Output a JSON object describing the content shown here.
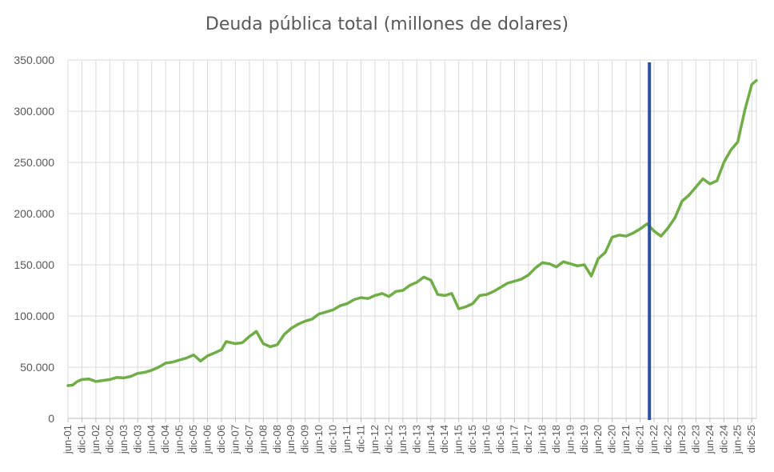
{
  "chart_data": {
    "type": "line",
    "title": "Deuda pública total (millones de dolares)",
    "xlabel": "",
    "ylabel": "",
    "ylim": [
      0,
      350000
    ],
    "y_ticks": [
      0,
      50000,
      100000,
      150000,
      200000,
      250000,
      300000,
      350000
    ],
    "y_tick_labels": [
      "0",
      "50.000",
      "100.000",
      "150.000",
      "200.000",
      "250.000",
      "300.000",
      "350.000"
    ],
    "x_tick_labels": [
      "jun-01",
      "dic-01",
      "jun-02",
      "dic-02",
      "jun-03",
      "dic-03",
      "jun-04",
      "dic-04",
      "jun-05",
      "dic-05",
      "jun-06",
      "dic-06",
      "jun-07",
      "dic-07",
      "jun-08",
      "dic-08",
      "jun-09",
      "dic-09",
      "jun-10",
      "dic-10",
      "jun-11",
      "dic-11",
      "jun-12",
      "dic-12",
      "jun-13",
      "dic-13",
      "jun-14",
      "dic-14",
      "jun-15",
      "dic-15",
      "jun-16",
      "dic-16",
      "jun-17",
      "dic-17",
      "jun-18",
      "dic-18",
      "jun-19",
      "dic-19",
      "jun-20",
      "dic-20",
      "jun-21",
      "dic-21",
      "jun-22",
      "dic-22",
      "jun-23",
      "dic-23",
      "jun-24",
      "dic-24",
      "jun-25",
      "dic-25"
    ],
    "grid": true,
    "series": [
      {
        "color": "#70ad47",
        "x": [
          "jun-01",
          "ago-01",
          "oct-01",
          "dic-01",
          "mar-02",
          "jun-02",
          "sep-02",
          "dic-02",
          "mar-03",
          "jun-03",
          "sep-03",
          "dic-03",
          "mar-04",
          "jun-04",
          "sep-04",
          "dic-04",
          "mar-05",
          "jun-05",
          "sep-05",
          "dic-05",
          "mar-06",
          "jun-06",
          "sep-06",
          "dic-06",
          "feb-07",
          "jun-07",
          "sep-07",
          "dic-07",
          "mar-08",
          "jun-08",
          "sep-08",
          "dic-08",
          "mar-09",
          "jun-09",
          "sep-09",
          "dic-09",
          "mar-10",
          "jun-10",
          "sep-10",
          "dic-10",
          "mar-11",
          "jun-11",
          "sep-11",
          "dic-11",
          "mar-12",
          "jun-12",
          "sep-12",
          "dic-12",
          "mar-13",
          "jun-13",
          "sep-13",
          "dic-13",
          "mar-14",
          "jun-14",
          "sep-14",
          "dic-14",
          "mar-15",
          "jun-15",
          "sep-15",
          "dic-15",
          "mar-16",
          "jun-16",
          "sep-16",
          "dic-16",
          "mar-17",
          "jun-17",
          "sep-17",
          "dic-17",
          "mar-18",
          "jun-18",
          "sep-18",
          "dic-18",
          "mar-19",
          "jun-19",
          "sep-19",
          "dic-19",
          "mar-20",
          "jun-20",
          "sep-20",
          "dic-20",
          "mar-21",
          "jun-21",
          "sep-21",
          "dic-21",
          "mar-22",
          "jun-22",
          "sep-22",
          "dic-22",
          "mar-23",
          "jun-23",
          "sep-23",
          "dic-23",
          "mar-24",
          "jun-24",
          "sep-24",
          "dic-24",
          "mar-25",
          "jun-25",
          "sep-25",
          "dic-25",
          "feb-26"
        ],
        "values": [
          32000,
          32500,
          36000,
          38000,
          38500,
          36000,
          37000,
          38000,
          40000,
          39500,
          41000,
          44000,
          45000,
          47000,
          50000,
          54000,
          55000,
          57000,
          59000,
          62000,
          56000,
          61000,
          64000,
          67000,
          75000,
          73000,
          74000,
          80000,
          85000,
          73000,
          70000,
          72000,
          82000,
          88000,
          92000,
          95000,
          97000,
          102000,
          104000,
          106000,
          110000,
          112000,
          116000,
          118000,
          117000,
          120000,
          122000,
          119000,
          124000,
          125000,
          130000,
          133000,
          138000,
          135000,
          121000,
          120000,
          122000,
          107000,
          109000,
          112000,
          120000,
          121000,
          124000,
          128000,
          132000,
          134000,
          136000,
          140000,
          147000,
          152000,
          151000,
          148000,
          153000,
          151000,
          149000,
          150000,
          139000,
          156000,
          162000,
          177000,
          179000,
          178000,
          181000,
          185000,
          190000,
          183000,
          178000,
          186000,
          196000,
          212000,
          218000,
          226000,
          234000,
          229000,
          232000,
          250000,
          262000,
          270000,
          301000,
          326000,
          330000
        ]
      }
    ],
    "annotations": [
      {
        "type": "vertical-line",
        "x": "abr-22",
        "color": "#2e51a2"
      }
    ]
  }
}
